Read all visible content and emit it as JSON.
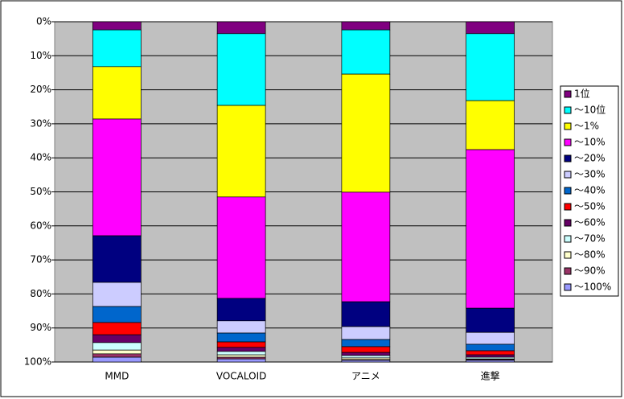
{
  "chart_data": {
    "type": "stacked-bar",
    "categories": [
      "MMD",
      "VOCALOID",
      "アニメ",
      "進撃"
    ],
    "ylim": [
      0,
      100
    ],
    "y_reversed": true,
    "grid": true,
    "legend": "right",
    "yticks": [
      {
        "value": 0,
        "label": "0%"
      },
      {
        "value": 10,
        "label": "10%"
      },
      {
        "value": 20,
        "label": "20%"
      },
      {
        "value": 30,
        "label": "30%"
      },
      {
        "value": 40,
        "label": "40%"
      },
      {
        "value": 50,
        "label": "50%"
      },
      {
        "value": 60,
        "label": "60%"
      },
      {
        "value": 70,
        "label": "70%"
      },
      {
        "value": 80,
        "label": "80%"
      },
      {
        "value": 90,
        "label": "90%"
      },
      {
        "value": 100,
        "label": "100%"
      }
    ],
    "series": [
      {
        "name": "1位",
        "color": "#800080",
        "values": [
          2.4,
          3.5,
          2.4,
          3.5
        ]
      },
      {
        "name": "～10位",
        "color": "#00ffff",
        "values": [
          10.8,
          21.1,
          13.0,
          19.7
        ]
      },
      {
        "name": "～1%",
        "color": "#ffff00",
        "values": [
          15.4,
          26.9,
          34.7,
          14.4
        ]
      },
      {
        "name": "～10%",
        "color": "#ff00ff",
        "values": [
          34.3,
          29.8,
          32.2,
          46.6
        ]
      },
      {
        "name": "～20%",
        "color": "#000080",
        "values": [
          13.7,
          6.6,
          7.3,
          7.1
        ]
      },
      {
        "name": "～30%",
        "color": "#ccccff",
        "values": [
          7.1,
          3.6,
          3.8,
          3.5
        ]
      },
      {
        "name": "～40%",
        "color": "#0066cc",
        "values": [
          4.7,
          2.6,
          2.1,
          1.9
        ]
      },
      {
        "name": "～50%",
        "color": "#ff0000",
        "values": [
          3.6,
          1.6,
          1.7,
          1.2
        ]
      },
      {
        "name": "～60%",
        "color": "#660066",
        "values": [
          2.3,
          1.2,
          0.9,
          0.7
        ]
      },
      {
        "name": "～70%",
        "color": "#ccffff",
        "values": [
          2.2,
          1.0,
          0.7,
          0.5
        ]
      },
      {
        "name": "～80%",
        "color": "#ffffcc",
        "values": [
          1.1,
          0.7,
          0.5,
          0.2
        ]
      },
      {
        "name": "～90%",
        "color": "#993366",
        "values": [
          1.0,
          0.5,
          0.2,
          0.2
        ]
      },
      {
        "name": "～100%",
        "color": "#9999ff",
        "values": [
          1.4,
          0.9,
          0.5,
          0.5
        ]
      }
    ]
  }
}
